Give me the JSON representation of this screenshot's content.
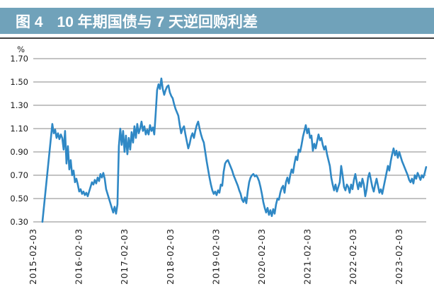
{
  "header": {
    "figure_label": "图 4",
    "title": "10 年期国债与 7 天逆回购利差"
  },
  "colors": {
    "header_bg": "#70a2ba",
    "header_text": "#ffffff",
    "rule": "#424242",
    "grid": "#878787",
    "line": "#2f88c5",
    "tick_text": "#1a1a1a"
  },
  "chart_data": {
    "type": "line",
    "title": "10 年期国债与 7 天逆回购利差",
    "ylabel": "%",
    "ylim": [
      0.3,
      1.7
    ],
    "y_ticks": [
      "1.70",
      "1.50",
      "1.30",
      "1.10",
      "0.90",
      "0.70",
      "0.50",
      "0.30"
    ],
    "x_ticks": [
      "2015-02-03",
      "2016-02-03",
      "2017-02-03",
      "2018-02-03",
      "2019-02-03",
      "2020-02-03",
      "2021-02-03",
      "2022-02-03",
      "2023-02-03"
    ],
    "x_tick_years": [
      2015.09,
      2016.09,
      2017.09,
      2018.09,
      2019.09,
      2020.09,
      2021.09,
      2022.09,
      2023.09
    ],
    "grid": "horizontal",
    "legend": "none",
    "series": [
      {
        "name": "10年期国债与7天逆回购利差",
        "t_start": 2015.29,
        "t_end": 2023.68,
        "values": [
          0.3,
          0.42,
          0.54,
          0.66,
          0.78,
          0.9,
          1.02,
          1.14,
          1.06,
          1.09,
          1.02,
          1.06,
          1.01,
          1.05,
          1.02,
          0.92,
          1.08,
          0.8,
          0.95,
          0.75,
          0.83,
          0.7,
          0.74,
          0.64,
          0.67,
          0.62,
          0.56,
          0.58,
          0.54,
          0.56,
          0.53,
          0.55,
          0.52,
          0.56,
          0.6,
          0.64,
          0.62,
          0.66,
          0.63,
          0.68,
          0.65,
          0.71,
          0.68,
          0.72,
          0.67,
          0.58,
          0.54,
          0.5,
          0.46,
          0.42,
          0.38,
          0.43,
          0.37,
          0.45,
          0.95,
          1.1,
          0.96,
          1.08,
          0.9,
          1.04,
          0.88,
          1.02,
          0.92,
          1.07,
          0.98,
          1.12,
          1.02,
          1.14,
          1.06,
          1.1,
          1.16,
          1.08,
          1.12,
          1.05,
          1.09,
          1.05,
          1.13,
          1.08,
          1.11,
          1.05,
          1.23,
          1.43,
          1.48,
          1.44,
          1.53,
          1.44,
          1.39,
          1.43,
          1.46,
          1.47,
          1.41,
          1.38,
          1.36,
          1.31,
          1.27,
          1.24,
          1.21,
          1.13,
          1.06,
          1.1,
          1.12,
          1.05,
          0.99,
          0.93,
          0.97,
          1.03,
          1.06,
          1.02,
          1.08,
          1.13,
          1.16,
          1.1,
          1.05,
          1.01,
          0.98,
          0.9,
          0.82,
          0.75,
          0.68,
          0.62,
          0.57,
          0.54,
          0.56,
          0.53,
          0.57,
          0.55,
          0.62,
          0.61,
          0.73,
          0.8,
          0.82,
          0.83,
          0.8,
          0.77,
          0.74,
          0.7,
          0.67,
          0.64,
          0.61,
          0.57,
          0.54,
          0.49,
          0.47,
          0.51,
          0.46,
          0.56,
          0.64,
          0.68,
          0.7,
          0.71,
          0.69,
          0.7,
          0.68,
          0.65,
          0.6,
          0.54,
          0.47,
          0.42,
          0.38,
          0.42,
          0.36,
          0.4,
          0.35,
          0.41,
          0.37,
          0.45,
          0.5,
          0.49,
          0.55,
          0.59,
          0.61,
          0.55,
          0.64,
          0.68,
          0.63,
          0.7,
          0.75,
          0.72,
          0.8,
          0.86,
          0.83,
          0.92,
          0.9,
          0.96,
          1.03,
          1.08,
          1.13,
          1.06,
          1.1,
          1.02,
          1.04,
          0.91,
          0.97,
          0.93,
          0.99,
          1.05,
          1.0,
          1.02,
          0.96,
          0.92,
          0.95,
          0.88,
          0.83,
          0.78,
          0.68,
          0.62,
          0.57,
          0.62,
          0.56,
          0.6,
          0.64,
          0.78,
          0.7,
          0.6,
          0.57,
          0.62,
          0.6,
          0.55,
          0.62,
          0.58,
          0.66,
          0.71,
          0.64,
          0.58,
          0.64,
          0.6,
          0.67,
          0.62,
          0.52,
          0.58,
          0.68,
          0.72,
          0.66,
          0.6,
          0.56,
          0.62,
          0.67,
          0.61,
          0.55,
          0.58,
          0.54,
          0.6,
          0.66,
          0.72,
          0.78,
          0.74,
          0.82,
          0.88,
          0.93,
          0.87,
          0.91,
          0.85,
          0.9,
          0.86,
          0.82,
          0.79,
          0.76,
          0.73,
          0.7,
          0.66,
          0.64,
          0.67,
          0.63,
          0.7,
          0.67,
          0.72,
          0.69,
          0.66,
          0.7,
          0.68,
          0.72,
          0.77
        ]
      }
    ]
  }
}
